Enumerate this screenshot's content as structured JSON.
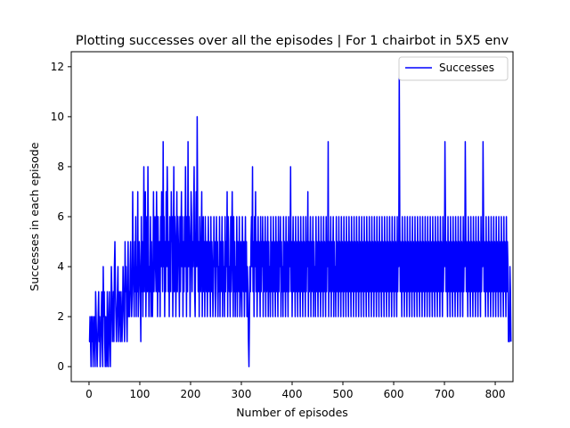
{
  "chart_data": {
    "type": "line",
    "title": "Plotting successes over all the episodes | For 1 chairbot in 5X5 env",
    "xlabel": "Number of episodes",
    "ylabel": "Successes in each episode",
    "xlim": [
      -35,
      835
    ],
    "ylim": [
      -0.6,
      12.6
    ],
    "xticks": [
      0,
      100,
      200,
      300,
      400,
      500,
      600,
      700,
      800
    ],
    "yticks": [
      0,
      2,
      4,
      6,
      8,
      10,
      12
    ],
    "legend_position": "top-right",
    "grid": false,
    "series": [
      {
        "name": "Successes",
        "color": "#0000ff",
        "x_start": 0,
        "values": [
          1,
          1,
          2,
          1,
          0,
          2,
          1,
          2,
          0,
          1,
          2,
          1,
          0,
          3,
          2,
          1,
          0,
          1,
          2,
          3,
          1,
          2,
          0,
          1,
          2,
          3,
          1,
          0,
          4,
          2,
          3,
          1,
          0,
          2,
          1,
          0,
          3,
          1,
          0,
          2,
          3,
          1,
          0,
          2,
          4,
          3,
          1,
          2,
          3,
          1,
          4,
          5,
          3,
          2,
          1,
          2,
          3,
          4,
          1,
          2,
          3,
          2,
          1,
          3,
          2,
          1,
          2,
          4,
          3,
          2,
          1,
          5,
          3,
          4,
          2,
          1,
          3,
          5,
          2,
          3,
          2,
          4,
          5,
          3,
          2,
          3,
          7,
          4,
          3,
          2,
          5,
          3,
          6,
          2,
          4,
          3,
          7,
          2,
          3,
          5,
          4,
          3,
          1,
          6,
          3,
          5,
          2,
          4,
          8,
          3,
          5,
          7,
          2,
          4,
          6,
          3,
          8,
          5,
          2,
          4,
          3,
          6,
          2,
          5,
          3,
          2,
          4,
          7,
          3,
          5,
          6,
          4,
          3,
          7,
          5,
          2,
          6,
          4,
          3,
          5,
          2,
          6,
          4,
          7,
          5,
          3,
          9,
          4,
          6,
          2,
          5,
          3,
          7,
          4,
          8,
          6,
          3,
          5,
          2,
          6,
          4,
          3,
          7,
          5,
          6,
          2,
          4,
          8,
          3,
          6,
          5,
          2,
          4,
          7,
          3,
          6,
          5,
          4,
          2,
          6,
          3,
          5,
          7,
          4,
          6,
          2,
          5,
          3,
          6,
          4,
          8,
          5,
          2,
          6,
          3,
          9,
          4,
          6,
          5,
          2,
          4,
          7,
          6,
          3,
          5,
          4,
          6,
          8,
          3,
          2,
          5,
          7,
          4,
          10,
          6,
          3,
          5,
          2,
          6,
          4,
          3,
          5,
          7,
          2,
          4,
          6,
          3,
          5,
          2,
          6,
          4,
          3,
          5,
          2,
          4,
          6,
          3,
          5,
          4,
          2,
          6,
          3,
          5,
          4,
          2,
          3,
          6,
          4,
          5,
          2,
          3,
          6,
          4,
          5,
          2,
          4,
          3,
          6,
          2,
          5,
          3,
          4,
          6,
          2,
          5,
          3,
          4,
          2,
          6,
          3,
          5,
          4,
          7,
          2,
          6,
          5,
          3,
          4,
          2,
          6,
          3,
          5,
          7,
          4,
          2,
          6,
          3,
          5,
          2,
          4,
          3,
          6,
          2,
          5,
          4,
          3,
          6,
          2,
          4,
          5,
          3,
          2,
          6,
          4,
          3,
          5,
          2,
          4,
          6,
          3,
          5,
          2,
          4,
          3,
          1,
          0,
          2,
          4,
          3,
          5,
          6,
          4,
          8,
          3,
          5,
          2,
          6,
          4,
          7,
          3,
          5,
          2,
          4,
          6,
          3,
          5,
          4,
          2,
          6,
          3,
          5,
          4,
          6,
          2,
          5,
          3,
          4,
          6,
          2,
          5,
          3,
          4,
          6,
          2,
          5,
          3,
          4,
          2,
          6,
          3,
          5,
          4,
          2,
          6,
          3,
          5,
          4,
          2,
          6,
          3,
          5,
          4,
          2,
          6,
          3,
          5,
          4,
          6,
          2,
          5,
          3,
          4,
          2,
          6,
          3,
          5,
          4,
          2,
          6,
          3,
          5,
          4,
          2,
          6,
          3,
          5,
          4,
          8,
          3,
          5,
          2,
          4,
          6,
          3,
          5,
          4,
          2,
          6,
          3,
          5,
          4,
          2,
          6,
          3,
          5,
          4,
          2,
          6,
          3,
          5,
          4,
          2,
          6,
          3,
          5,
          4,
          2,
          6,
          3,
          5,
          4,
          7,
          2,
          5,
          3,
          4,
          6,
          2,
          5,
          3,
          4,
          6,
          2,
          5,
          3,
          4,
          2,
          6,
          3,
          5,
          4,
          2,
          6,
          3,
          5,
          4,
          2,
          6,
          3,
          5,
          4,
          2,
          6,
          3,
          5,
          4,
          2,
          6,
          3,
          5,
          4,
          9,
          2,
          5,
          3,
          4,
          6,
          2,
          5,
          3,
          4,
          6,
          2,
          5,
          3,
          4,
          2,
          6,
          3,
          5,
          4,
          2,
          6,
          3,
          5,
          4,
          2,
          6,
          3,
          5,
          4,
          2,
          6,
          3,
          5,
          4,
          2,
          6,
          3,
          5,
          4,
          2,
          6,
          3,
          5,
          4,
          2,
          6,
          3,
          5,
          4,
          2,
          6,
          3,
          5,
          4,
          2,
          6,
          3,
          5,
          4,
          2,
          6,
          3,
          5,
          4,
          2,
          6,
          3,
          5,
          4,
          2,
          6,
          3,
          5,
          4,
          2,
          6,
          3,
          5,
          4,
          2,
          6,
          3,
          5,
          4,
          2,
          6,
          3,
          5,
          4,
          2,
          6,
          3,
          5,
          4,
          2,
          6,
          3,
          5,
          4,
          2,
          6,
          3,
          5,
          4,
          2,
          6,
          3,
          5,
          4,
          2,
          6,
          3,
          5,
          4,
          2,
          6,
          3,
          5,
          4,
          2,
          6,
          3,
          5,
          4,
          2,
          6,
          3,
          5,
          4,
          2,
          6,
          3,
          5,
          4,
          2,
          6,
          3,
          5,
          4,
          12,
          6,
          3,
          5,
          4,
          2,
          6,
          3,
          5,
          4,
          2,
          6,
          3,
          5,
          4,
          2,
          6,
          3,
          5,
          4,
          2,
          6,
          3,
          5,
          4,
          2,
          6,
          3,
          5,
          4,
          2,
          6,
          3,
          5,
          4,
          2,
          6,
          3,
          5,
          4,
          2,
          6,
          3,
          5,
          4,
          2,
          6,
          3,
          5,
          4,
          2,
          6,
          3,
          5,
          4,
          2,
          6,
          3,
          5,
          4,
          2,
          6,
          3,
          5,
          4,
          2,
          6,
          3,
          5,
          4,
          2,
          6,
          3,
          5,
          4,
          2,
          6,
          3,
          5,
          4,
          2,
          6,
          3,
          5,
          4,
          2,
          6,
          3,
          5,
          4,
          9,
          6,
          3,
          5,
          4,
          2,
          6,
          3,
          5,
          4,
          2,
          6,
          3,
          5,
          4,
          2,
          6,
          3,
          5,
          4,
          2,
          6,
          3,
          5,
          4,
          2,
          6,
          3,
          5,
          4,
          2,
          6,
          3,
          5,
          4,
          2,
          6,
          3,
          5,
          4,
          9,
          6,
          3,
          5,
          4,
          2,
          6,
          3,
          5,
          4,
          2,
          6,
          3,
          5,
          4,
          2,
          6,
          3,
          5,
          4,
          2,
          6,
          3,
          5,
          4,
          2,
          6,
          3,
          5,
          4,
          2,
          6,
          3,
          5,
          4,
          9,
          6,
          3,
          5,
          4,
          2,
          6,
          3,
          5,
          4,
          2,
          6,
          3,
          5,
          4,
          2,
          6,
          3,
          5,
          4,
          2,
          6,
          3,
          5,
          4,
          2,
          6,
          3,
          5,
          4,
          2,
          6,
          3,
          5,
          4,
          2,
          6,
          3,
          5,
          4,
          2,
          6,
          3,
          5,
          4,
          2,
          6,
          3,
          5,
          4,
          1,
          2,
          1,
          4,
          3,
          1
        ]
      }
    ]
  }
}
